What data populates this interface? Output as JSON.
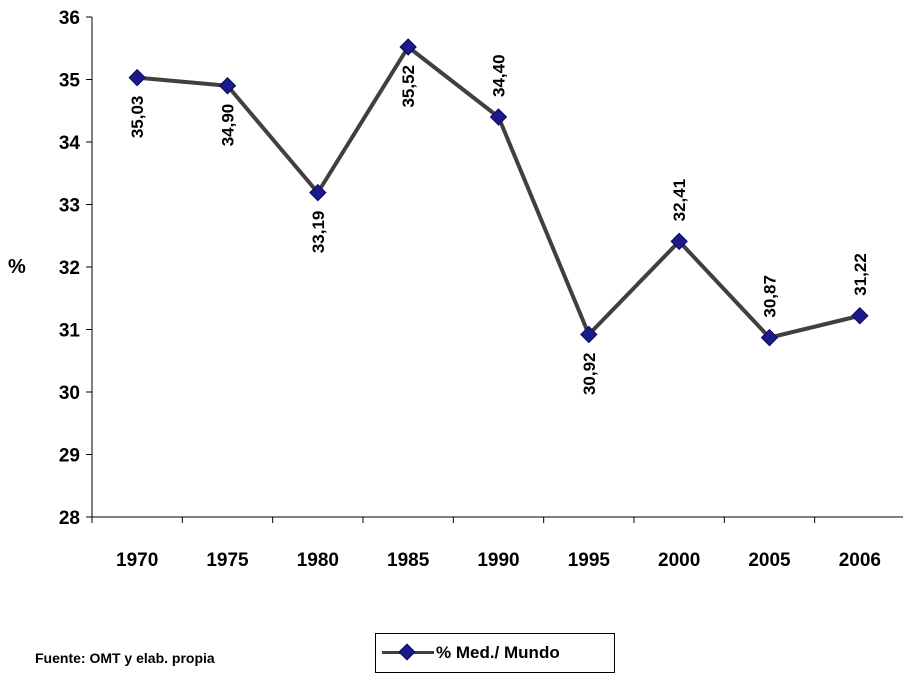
{
  "chart_data": {
    "type": "line",
    "categories": [
      "1970",
      "1975",
      "1980",
      "1985",
      "1990",
      "1995",
      "2000",
      "2005",
      "2006"
    ],
    "series": [
      {
        "name": "% Med./ Mundo",
        "values": [
          35.03,
          34.9,
          33.19,
          35.52,
          34.4,
          30.92,
          32.41,
          30.87,
          31.22
        ],
        "value_labels": [
          "35,03",
          "34,90",
          "33,19",
          "35,52",
          "34,40",
          "30,92",
          "32,41",
          "30,87",
          "31,22"
        ],
        "line_color": "#404040",
        "marker_color": "#1a1a8c"
      }
    ],
    "ylabel": "%",
    "ylim": [
      28,
      36
    ],
    "yticks": [
      "28",
      "29",
      "30",
      "31",
      "32",
      "33",
      "34",
      "35",
      "36"
    ],
    "grid": false,
    "legend_position": "bottom"
  },
  "source_note": "Fuente: OMT y elab. propia",
  "legend": {
    "label": "% Med./ Mundo"
  }
}
